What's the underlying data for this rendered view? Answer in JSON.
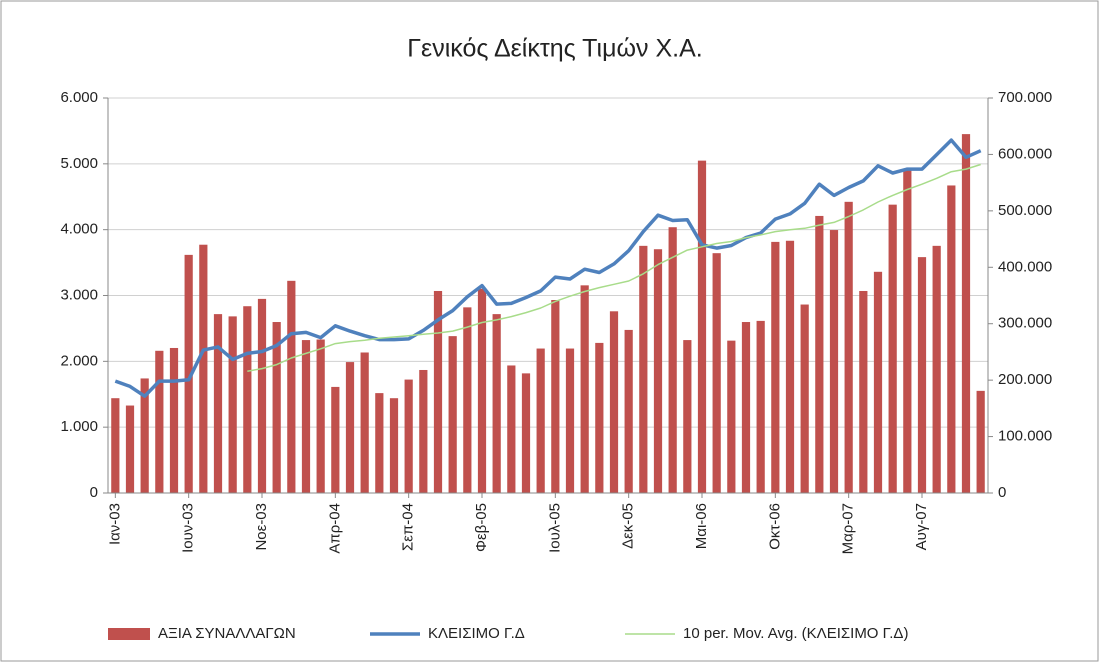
{
  "chart_data": {
    "type": "combo",
    "title": "Γενικός Δείκτης Τιμών Χ.Α.",
    "categories": [
      "Ιαν-03",
      null,
      null,
      null,
      null,
      "Ιουν-03",
      null,
      null,
      null,
      null,
      "Νοε-03",
      null,
      null,
      null,
      null,
      "Απρ-04",
      null,
      null,
      null,
      null,
      "Σεπ-04",
      null,
      null,
      null,
      null,
      "Φεβ-05",
      null,
      null,
      null,
      null,
      "Ιουλ-05",
      null,
      null,
      null,
      null,
      "Δεκ-05",
      null,
      null,
      null,
      null,
      "Μαι-06",
      null,
      null,
      null,
      null,
      "Οκτ-06",
      null,
      null,
      null,
      null,
      "Μαρ-07",
      null,
      null,
      null,
      null,
      "Αυγ-07",
      null,
      null,
      null,
      null
    ],
    "series": [
      {
        "name": "ΑΞΙΑ ΣΥΝΑΛΛΑΓΩΝ",
        "type": "bar",
        "axis": "y2",
        "color": "#c0504d",
        "values": [
          168000,
          155000,
          203000,
          252000,
          257000,
          422000,
          440000,
          317000,
          313000,
          331000,
          344000,
          303000,
          376000,
          271000,
          272000,
          188000,
          232000,
          249000,
          177000,
          168000,
          201000,
          218000,
          358000,
          278000,
          329000,
          362000,
          317000,
          226000,
          212000,
          256000,
          342000,
          256000,
          368000,
          266000,
          322000,
          289000,
          438000,
          432000,
          471000,
          271000,
          589000,
          425000,
          270000,
          303000,
          305000,
          445000,
          447000,
          334000,
          491000,
          466000,
          516000,
          358000,
          392000,
          511000,
          574000,
          418000,
          438000,
          545000,
          636000,
          181000
        ]
      },
      {
        "name": "ΚΛΕΙΣΙΜΟ Γ.Δ",
        "type": "line",
        "color": "#4f81bd",
        "width": 3.5,
        "values": [
          1700,
          1620,
          1470,
          1700,
          1700,
          1720,
          2170,
          2220,
          2030,
          2120,
          2150,
          2240,
          2420,
          2440,
          2360,
          2540,
          2460,
          2390,
          2330,
          2330,
          2340,
          2470,
          2630,
          2770,
          2980,
          3150,
          2870,
          2880,
          2970,
          3070,
          3280,
          3250,
          3400,
          3350,
          3480,
          3680,
          3970,
          4220,
          4140,
          4150,
          3770,
          3720,
          3760,
          3880,
          3950,
          4160,
          4240,
          4400,
          4690,
          4520,
          4640,
          4740,
          4970,
          4860,
          4920,
          4920,
          5140,
          5360,
          5100,
          5200
        ]
      },
      {
        "name": "10 per. Mov. Avg. (ΚΛΕΙΣΙΜΟ Γ.Δ)",
        "type": "line",
        "color": "#a8dc8a",
        "width": 1.5,
        "values": [
          null,
          null,
          null,
          null,
          null,
          null,
          null,
          null,
          null,
          1850,
          1890,
          1950,
          2050,
          2120,
          2190,
          2270,
          2300,
          2320,
          2350,
          2370,
          2390,
          2410,
          2430,
          2460,
          2520,
          2590,
          2630,
          2680,
          2740,
          2810,
          2910,
          2990,
          3060,
          3120,
          3170,
          3220,
          3330,
          3470,
          3580,
          3690,
          3740,
          3790,
          3820,
          3880,
          3920,
          3970,
          4000,
          4020,
          4070,
          4110,
          4200,
          4300,
          4420,
          4520,
          4610,
          4690,
          4780,
          4880,
          4920,
          4990
        ]
      }
    ],
    "ylim": [
      0,
      6000
    ],
    "yticks": [
      {
        "value": 0,
        "label": "0"
      },
      {
        "value": 1000,
        "label": "1.000"
      },
      {
        "value": 2000,
        "label": "2.000"
      },
      {
        "value": 3000,
        "label": "3.000"
      },
      {
        "value": 4000,
        "label": "4.000"
      },
      {
        "value": 5000,
        "label": "5.000"
      },
      {
        "value": 6000,
        "label": "6.000"
      }
    ],
    "y2lim": [
      0,
      700000
    ],
    "y2ticks": [
      {
        "value": 0,
        "label": "0"
      },
      {
        "value": 100000,
        "label": "100.000"
      },
      {
        "value": 200000,
        "label": "200.000"
      },
      {
        "value": 300000,
        "label": "300.000"
      },
      {
        "value": 400000,
        "label": "400.000"
      },
      {
        "value": 500000,
        "label": "500.000"
      },
      {
        "value": 600000,
        "label": "600.000"
      },
      {
        "value": 700000,
        "label": "700.000"
      }
    ],
    "grid": true,
    "legend": "bottom"
  }
}
